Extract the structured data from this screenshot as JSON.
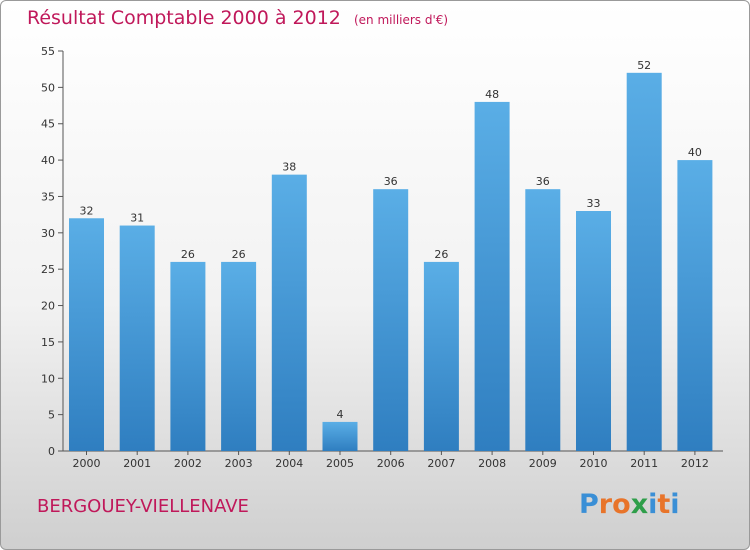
{
  "header": {
    "title": "Résultat Comptable 2000 à 2012",
    "subtitle": "(en milliers d'€)"
  },
  "commune": "BERGOUEY-VIELLENAVE",
  "logo": {
    "text": "Proxiti",
    "letter_colors": [
      "#3a8fd6",
      "#e8742a",
      "#e8742a",
      "#2e9e4a",
      "#3a8fd6",
      "#e8742a",
      "#3a8fd6"
    ]
  },
  "colors": {
    "bar_top": "#5aaee6",
    "bar_bottom": "#2f7ec0",
    "title": "#c0185a"
  },
  "chart_data": {
    "type": "bar",
    "title": "Résultat Comptable 2000 à 2012",
    "subtitle": "(en milliers d'€)",
    "xlabel": "",
    "ylabel": "",
    "categories": [
      "2000",
      "2001",
      "2002",
      "2003",
      "2004",
      "2005",
      "2006",
      "2007",
      "2008",
      "2009",
      "2010",
      "2011",
      "2012"
    ],
    "values": [
      32,
      31,
      26,
      26,
      38,
      4,
      36,
      26,
      48,
      36,
      33,
      52,
      40
    ],
    "ylim": [
      0,
      55
    ],
    "yticks": [
      0,
      5,
      10,
      15,
      20,
      25,
      30,
      35,
      40,
      45,
      50,
      55
    ],
    "grid": false,
    "legend": "none"
  }
}
